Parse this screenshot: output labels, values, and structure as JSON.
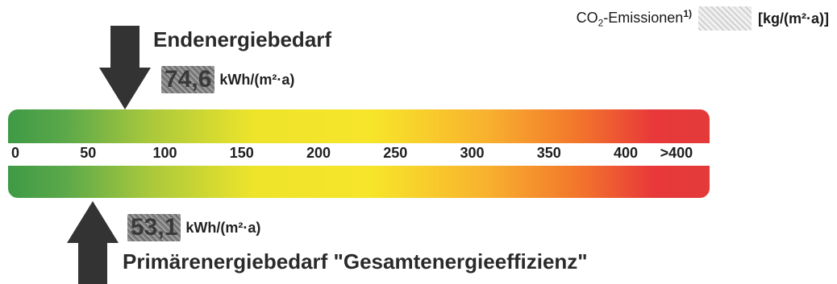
{
  "co2": {
    "label_prefix": "CO",
    "label_sub": "2",
    "label_suffix": "-Emissionen",
    "footnote": "1)",
    "unit": "[kg/(m²·a)]",
    "value_icon": "obscured-value-box"
  },
  "chart_data": {
    "type": "energy-scale",
    "x": [
      0,
      50,
      100,
      150,
      200,
      250,
      300,
      350,
      400
    ],
    "tick_labels": [
      "0",
      "50",
      "100",
      "150",
      "200",
      "250",
      "300",
      "350",
      "400",
      ">400"
    ],
    "xlim": [
      0,
      450
    ],
    "gradient_colors": [
      "#3f9a45",
      "#eee42a",
      "#f8b22e",
      "#e33a3a"
    ],
    "markers": [
      {
        "label": "Endenergiebedarf",
        "value_text": "74,6",
        "value": 74.6,
        "unit": "kWh/(m²·a)",
        "position": "top"
      },
      {
        "label": "Primärenergiebedarf \"Gesamtenergieeffizienz\"",
        "value_text": "53,1",
        "value": 53.1,
        "unit": "kWh/(m²·a)",
        "position": "bottom"
      }
    ]
  }
}
